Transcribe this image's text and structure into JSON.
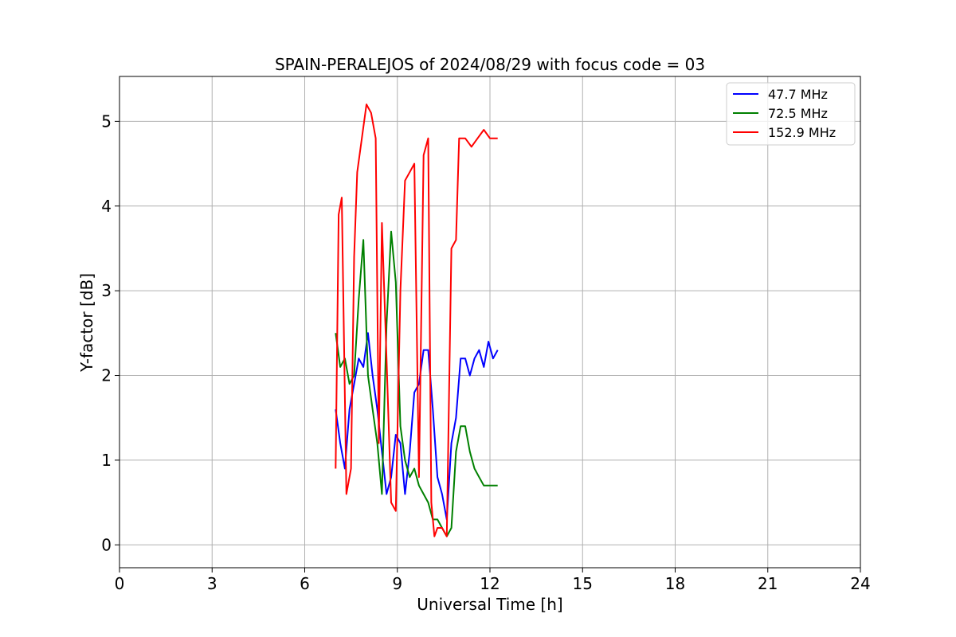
{
  "chart_data": {
    "type": "line",
    "title": "SPAIN-PERALEJOS of 2024/08/29 with focus code = 03",
    "xlabel": "Universal Time [h]",
    "ylabel": "Y-factor [dB]",
    "xlim": [
      0,
      24
    ],
    "ylim": [
      -0.27,
      5.53
    ],
    "xticks": [
      0,
      3,
      6,
      9,
      12,
      15,
      18,
      21,
      24
    ],
    "yticks": [
      0,
      1,
      2,
      3,
      4,
      5
    ],
    "grid": true,
    "legend_position": "top-right",
    "series": [
      {
        "name": "  47.7 MHz",
        "color": "#0000ff",
        "x": [
          7.0,
          7.15,
          7.3,
          7.45,
          7.6,
          7.75,
          7.9,
          8.05,
          8.2,
          8.35,
          8.5,
          8.65,
          8.8,
          8.95,
          9.1,
          9.25,
          9.4,
          9.55,
          9.7,
          9.85,
          10.0,
          10.15,
          10.3,
          10.45,
          10.6,
          10.75,
          10.9,
          11.05,
          11.2,
          11.35,
          11.5,
          11.65,
          11.8,
          11.95,
          12.1,
          12.25
        ],
        "y": [
          1.6,
          1.2,
          0.9,
          1.6,
          1.9,
          2.2,
          2.1,
          2.5,
          2.0,
          1.6,
          1.1,
          0.6,
          0.8,
          1.3,
          1.2,
          0.6,
          1.1,
          1.8,
          1.9,
          2.3,
          2.3,
          1.6,
          0.8,
          0.6,
          0.3,
          1.2,
          1.5,
          2.2,
          2.2,
          2.0,
          2.2,
          2.3,
          2.1,
          2.4,
          2.2,
          2.3
        ]
      },
      {
        "name": "  72.5 MHz",
        "color": "#008000",
        "x": [
          7.0,
          7.15,
          7.3,
          7.45,
          7.6,
          7.75,
          7.9,
          8.05,
          8.2,
          8.35,
          8.5,
          8.65,
          8.8,
          8.95,
          9.1,
          9.25,
          9.4,
          9.55,
          9.7,
          9.85,
          10.0,
          10.15,
          10.3,
          10.45,
          10.6,
          10.75,
          10.9,
          11.05,
          11.2,
          11.35,
          11.5,
          11.65,
          11.8,
          11.95,
          12.1,
          12.25
        ],
        "y": [
          2.5,
          2.1,
          2.2,
          1.9,
          2.0,
          2.9,
          3.6,
          2.0,
          1.6,
          1.2,
          0.6,
          2.6,
          3.7,
          3.1,
          1.4,
          1.0,
          0.8,
          0.9,
          0.7,
          0.6,
          0.5,
          0.3,
          0.3,
          0.2,
          0.1,
          0.2,
          1.1,
          1.4,
          1.4,
          1.1,
          0.9,
          0.8,
          0.7,
          0.7,
          0.7,
          0.7
        ]
      },
      {
        "name": "152.9 MHz",
        "color": "#ff0000",
        "x": [
          7.0,
          7.1,
          7.2,
          7.35,
          7.5,
          7.6,
          7.7,
          7.85,
          8.0,
          8.15,
          8.3,
          8.4,
          8.5,
          8.65,
          8.8,
          8.95,
          9.1,
          9.25,
          9.4,
          9.55,
          9.7,
          9.85,
          10.0,
          10.1,
          10.2,
          10.3,
          10.45,
          10.6,
          10.75,
          10.9,
          11.0,
          11.2,
          11.4,
          11.6,
          11.8,
          12.0,
          12.25
        ],
        "y": [
          0.9,
          3.9,
          4.1,
          0.6,
          0.9,
          3.4,
          4.4,
          4.8,
          5.2,
          5.1,
          4.8,
          1.2,
          3.8,
          2.2,
          0.5,
          0.4,
          3.0,
          4.3,
          4.4,
          4.5,
          0.8,
          4.6,
          4.8,
          0.5,
          0.1,
          0.2,
          0.2,
          0.1,
          3.5,
          3.6,
          4.8,
          4.8,
          4.7,
          4.8,
          4.9,
          4.8,
          4.8
        ]
      }
    ]
  }
}
